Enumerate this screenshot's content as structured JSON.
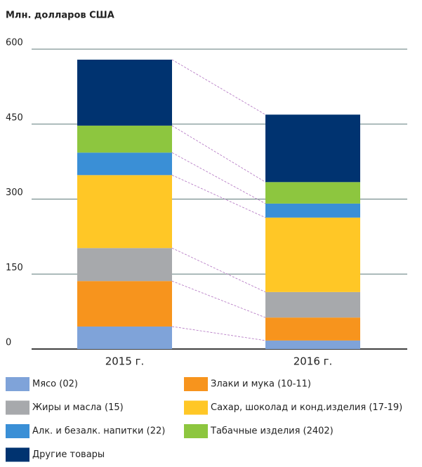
{
  "chart_data": {
    "type": "stacked_bar",
    "title": "Млн. долларов США",
    "categories": [
      "2015 г.",
      "2016 г."
    ],
    "series": [
      {
        "name": "Мясо (02)",
        "color": "#7fa3d9",
        "values": [
          45,
          17
        ]
      },
      {
        "name": "Злаки и мука (10-11)",
        "color": "#f7941d",
        "values": [
          91,
          46
        ]
      },
      {
        "name": "Жиры и масла (15)",
        "color": "#a7a9ac",
        "values": [
          66,
          51
        ]
      },
      {
        "name": "Сахар, шоколад и конд.изделия (17-19)",
        "color": "#ffc726",
        "values": [
          146,
          149
        ]
      },
      {
        "name": "Алк. и безалк. напитки (22)",
        "color": "#3a8fd6",
        "values": [
          45,
          28
        ]
      },
      {
        "name": "Табачные изделия (2402)",
        "color": "#8dc63f",
        "values": [
          54,
          43
        ]
      },
      {
        "name": "Другие товары",
        "color": "#003370",
        "values": [
          132,
          135
        ]
      }
    ],
    "ylim": [
      0,
      600
    ],
    "yticks": [
      0,
      150,
      300,
      450,
      600
    ],
    "grid": true
  }
}
